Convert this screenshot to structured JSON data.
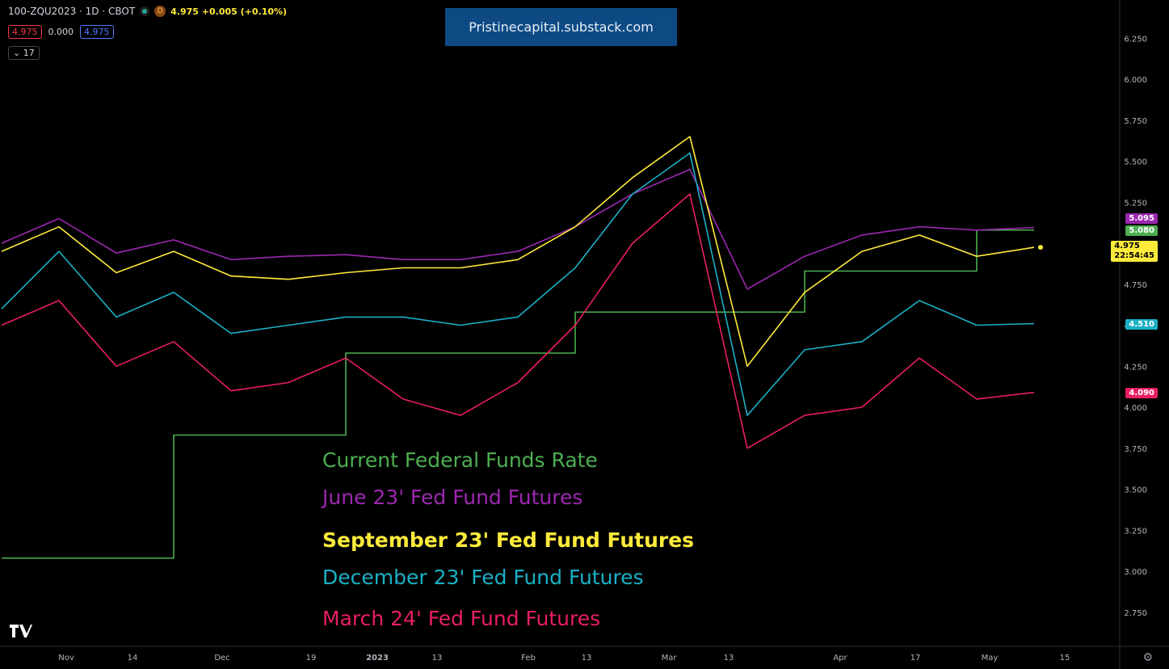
{
  "header": {
    "symbol": "100-ZQU2023 · 1D · CBOT",
    "badge": "D",
    "quote": "4.975  +0.005 (+0.10%)",
    "bid": "4.975",
    "spread": "0.000",
    "ask": "4.975",
    "interval": "17"
  },
  "banner": "Pristinecapital.substack.com",
  "legend": [
    {
      "label": "Current Federal Funds Rate",
      "color": "#4caf50"
    },
    {
      "label": "June 23' Fed Fund Futures",
      "color": "#9c27b0"
    },
    {
      "label": "September 23' Fed Fund Futures",
      "color": "#ffeb3b"
    },
    {
      "label": "December 23' Fed Fund Futures",
      "color": "#1bb0c6"
    },
    {
      "label": "March 24' Fed Fund Futures",
      "color": "#e91e63"
    }
  ],
  "price_tags": {
    "june": "5.095",
    "current": "5.080",
    "sept": "4.975",
    "sept_timer": "22:54:45",
    "dec": "4.510",
    "march": "4.090"
  },
  "chart_data": {
    "type": "line",
    "y_axis_ticks": [
      "6.250",
      "6.000",
      "5.750",
      "5.500",
      "5.250",
      "5.000",
      "4.750",
      "4.500",
      "4.250",
      "4.000",
      "3.750",
      "3.500",
      "3.250",
      "3.000",
      "2.750"
    ],
    "ylim": [
      2.6,
      6.4
    ],
    "x_axis_labels": [
      "Nov",
      "14",
      "Dec",
      "19",
      "2023",
      "13",
      "Feb",
      "13",
      "Mar",
      "13",
      "Apr",
      "17",
      "May",
      "15"
    ],
    "grid": false,
    "legend_position": "bottom-center",
    "series": [
      {
        "name": "Current Federal Funds Rate",
        "color": "#4caf50",
        "values": [
          3.08,
          3.08,
          3.08,
          3.83,
          3.83,
          3.83,
          4.33,
          4.33,
          4.33,
          4.33,
          4.58,
          4.58,
          4.58,
          4.58,
          4.83,
          4.83,
          4.83,
          5.08,
          5.08
        ]
      },
      {
        "name": "June 23' Fed Fund Futures",
        "color": "#9c27b0",
        "values": [
          5.0,
          5.15,
          4.94,
          5.02,
          4.9,
          4.92,
          4.93,
          4.9,
          4.9,
          4.95,
          5.1,
          5.3,
          5.45,
          4.72,
          4.92,
          5.05,
          5.1,
          5.08,
          5.095
        ]
      },
      {
        "name": "September 23' Fed Fund Futures",
        "color": "#ffeb3b",
        "values": [
          4.95,
          5.1,
          4.82,
          4.95,
          4.8,
          4.78,
          4.82,
          4.85,
          4.85,
          4.9,
          5.1,
          5.4,
          5.65,
          4.25,
          4.7,
          4.95,
          5.05,
          4.92,
          4.975
        ]
      },
      {
        "name": "December 23' Fed Fund Futures",
        "color": "#1bb0c6",
        "values": [
          4.6,
          4.95,
          4.55,
          4.7,
          4.45,
          4.5,
          4.55,
          4.55,
          4.5,
          4.55,
          4.85,
          5.3,
          5.55,
          3.95,
          4.35,
          4.4,
          4.65,
          4.5,
          4.51
        ]
      },
      {
        "name": "March 24' Fed Fund Futures",
        "color": "#e91e63",
        "values": [
          4.5,
          4.65,
          4.25,
          4.4,
          4.1,
          4.15,
          4.3,
          4.05,
          3.95,
          4.15,
          4.5,
          5.0,
          5.3,
          3.75,
          3.95,
          4.0,
          4.3,
          4.05,
          4.09
        ]
      }
    ]
  }
}
